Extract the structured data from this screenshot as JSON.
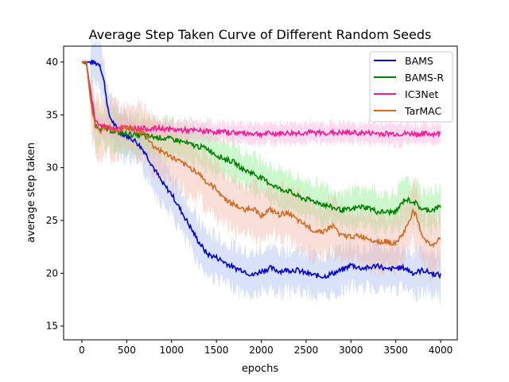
{
  "chart_data": {
    "type": "line",
    "title": "Average Step Taken Curve of Different Random Seeds",
    "xlabel": "epochs",
    "ylabel": "average step taken",
    "xlim": [
      -204,
      4186
    ],
    "ylim": [
      13.7,
      41.5
    ],
    "xticks": [
      0,
      500,
      1000,
      1500,
      2000,
      2500,
      3000,
      3500,
      4000
    ],
    "yticks": [
      15,
      20,
      25,
      30,
      35,
      40
    ],
    "grid": false,
    "legend_position": "top-right",
    "series": [
      {
        "name": "BAMS",
        "color": "#0000cc",
        "band_color": "#aabff0",
        "band": 2.0,
        "x": [
          0,
          100,
          200,
          250,
          300,
          400,
          500,
          600,
          700,
          800,
          900,
          1000,
          1100,
          1200,
          1300,
          1400,
          1500,
          1600,
          1700,
          1800,
          1900,
          2000,
          2100,
          2200,
          2300,
          2400,
          2500,
          2600,
          2700,
          2800,
          2900,
          3000,
          3100,
          3200,
          3300,
          3400,
          3500,
          3600,
          3700,
          3800,
          3900,
          4000
        ],
        "y": [
          40,
          40,
          39.8,
          38,
          35,
          33.5,
          33,
          32.5,
          31.5,
          30,
          28.5,
          27.5,
          26,
          24.5,
          23,
          21.8,
          21.5,
          21,
          20.5,
          20.3,
          19.8,
          20.2,
          20.5,
          20.2,
          20.3,
          20.3,
          20,
          19.8,
          19.7,
          20,
          20.3,
          20.8,
          20.5,
          20.5,
          20.8,
          20.3,
          20.5,
          20.5,
          20,
          20.3,
          20,
          19.8
        ]
      },
      {
        "name": "BAMS-R",
        "color": "#008000",
        "band_color": "#90f090",
        "band": 1.8,
        "x": [
          0,
          50,
          100,
          150,
          200,
          300,
          400,
          500,
          700,
          900,
          1000,
          1100,
          1200,
          1300,
          1400,
          1500,
          1600,
          1700,
          1800,
          1900,
          2000,
          2100,
          2200,
          2300,
          2400,
          2500,
          2600,
          2700,
          2800,
          2900,
          3000,
          3100,
          3200,
          3300,
          3400,
          3500,
          3600,
          3700,
          3800,
          3900,
          4000
        ],
        "y": [
          40,
          39.8,
          37,
          34,
          33.8,
          33.6,
          33.3,
          33.2,
          33,
          32.8,
          32.7,
          32.5,
          32.2,
          32,
          31.8,
          31.2,
          30.8,
          30.5,
          29.8,
          29.5,
          29,
          28.5,
          28,
          27.8,
          27.3,
          27,
          26.8,
          26.5,
          26.2,
          26,
          26,
          26.3,
          26.2,
          25.8,
          25.8,
          25.8,
          27,
          26.8,
          26,
          26,
          26.3
        ]
      },
      {
        "name": "IC3Net",
        "color": "#ff1493",
        "band_color": "#ffb0e0",
        "band": 0.9,
        "x": [
          0,
          50,
          100,
          150,
          200,
          300,
          500,
          700,
          900,
          1000,
          1500,
          2000,
          2500,
          3000,
          3500,
          4000
        ],
        "y": [
          40,
          40,
          37,
          34.5,
          34,
          33.8,
          33.8,
          33.7,
          33.7,
          33.6,
          33.4,
          33.2,
          33.3,
          33.3,
          33.2,
          33.2
        ]
      },
      {
        "name": "TarMAC",
        "color": "#d2691e",
        "band_color": "#f5b8a8",
        "band": 2.5,
        "x": [
          0,
          50,
          100,
          150,
          200,
          300,
          400,
          500,
          600,
          700,
          800,
          900,
          1000,
          1100,
          1200,
          1300,
          1400,
          1500,
          1600,
          1700,
          1800,
          1900,
          2000,
          2100,
          2200,
          2300,
          2400,
          2500,
          2600,
          2700,
          2800,
          2900,
          3000,
          3100,
          3200,
          3300,
          3400,
          3500,
          3600,
          3700,
          3800,
          3900,
          4000
        ],
        "y": [
          40,
          40,
          36,
          34,
          33.5,
          33.8,
          33.5,
          33.8,
          33.5,
          33.2,
          32,
          31.5,
          31,
          30.5,
          30,
          29.5,
          28.5,
          28,
          27,
          26.5,
          26,
          26.2,
          25.5,
          26,
          25.5,
          25.8,
          25,
          24.5,
          24,
          24,
          24.5,
          23.5,
          23.5,
          23.5,
          23.3,
          23,
          23,
          22.8,
          24,
          26,
          23.5,
          22.5,
          23.5
        ]
      }
    ]
  }
}
